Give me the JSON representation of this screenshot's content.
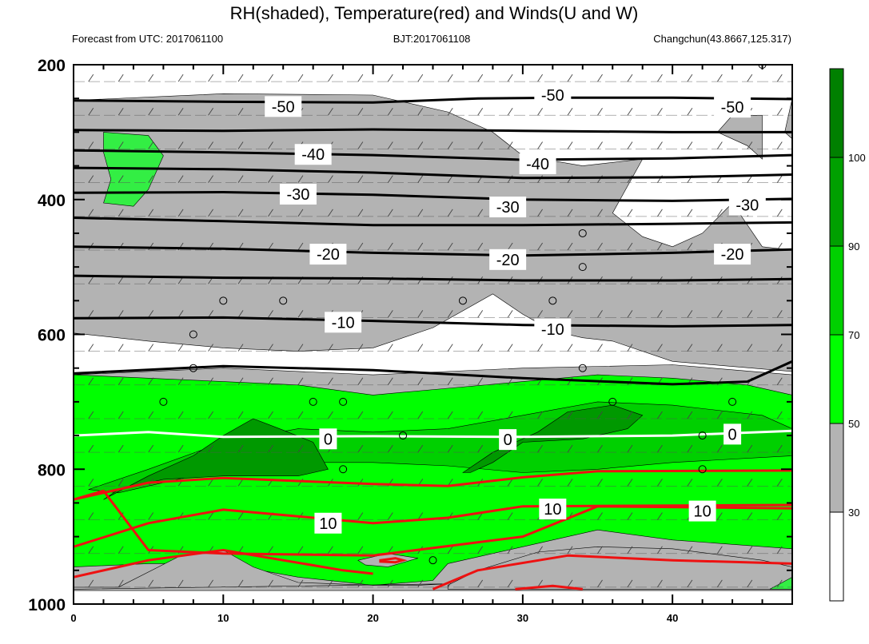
{
  "chart_data": {
    "type": "contour-cross-section",
    "title": "RH(shaded), Temperature(red) and Winds(U and W)",
    "left_subtitle": "Forecast from UTC: 2017061100",
    "center_subtitle": "BJT:2017061108",
    "right_subtitle": "Changchun(43.8667,125.317)",
    "xlim": [
      0,
      48
    ],
    "ylim": [
      1000,
      200
    ],
    "x_ticks": [
      {
        "value": 0,
        "label": "0"
      },
      {
        "value": 10,
        "label": "10"
      },
      {
        "value": 20,
        "label": "20"
      },
      {
        "value": 30,
        "label": "30"
      },
      {
        "value": 40,
        "label": "40"
      }
    ],
    "y_ticks": [
      {
        "value": 200,
        "label": "200"
      },
      {
        "value": 400,
        "label": "400"
      },
      {
        "value": 600,
        "label": "600"
      },
      {
        "value": 800,
        "label": "800"
      },
      {
        "value": 1000,
        "label": "1000"
      }
    ],
    "colorbar": {
      "levels": [
        {
          "value": 30,
          "label": "30"
        },
        {
          "value": 50,
          "label": "50"
        },
        {
          "value": 70,
          "label": "70"
        },
        {
          "value": 90,
          "label": "90"
        },
        {
          "value": 100,
          "label": "100"
        }
      ],
      "colors": [
        "#ffffff",
        "#b3b3b3",
        "#00ff00",
        "#00d000",
        "#00a000",
        "#008000"
      ]
    },
    "colors": {
      "rh_gray": "#b3b3b3",
      "rh_lightgreen": "#33ee44",
      "rh_green": "#00ff00",
      "rh_medgreen": "#00d000",
      "rh_darkgreen": "#009900",
      "temp_negative": "#000000",
      "temp_zero": "#ffffff",
      "temp_positive": "#ee1111"
    },
    "temperature_contours": [
      {
        "level": -50,
        "label": "-50",
        "points": [
          [
            0,
            253
          ],
          [
            10,
            255
          ],
          [
            20,
            256
          ],
          [
            27,
            250
          ],
          [
            33,
            249
          ],
          [
            40,
            249
          ],
          [
            48,
            251
          ]
        ]
      },
      {
        "level": -50,
        "label": "",
        "points": [
          [
            0,
            297
          ],
          [
            10,
            298
          ],
          [
            20,
            296
          ],
          [
            30,
            298
          ],
          [
            40,
            300
          ],
          [
            48,
            300
          ]
        ]
      },
      {
        "level": -40,
        "label": "-40",
        "points": [
          [
            0,
            327
          ],
          [
            10,
            330
          ],
          [
            20,
            334
          ],
          [
            30,
            341
          ],
          [
            40,
            339
          ],
          [
            48,
            334
          ]
        ]
      },
      {
        "level": -40,
        "label": "",
        "points": [
          [
            0,
            353
          ],
          [
            10,
            355
          ],
          [
            20,
            360
          ],
          [
            30,
            368
          ],
          [
            40,
            367
          ],
          [
            48,
            363
          ]
        ]
      },
      {
        "level": -30,
        "label": "-30",
        "points": [
          [
            0,
            390
          ],
          [
            10,
            389
          ],
          [
            20,
            393
          ],
          [
            30,
            400
          ],
          [
            40,
            402
          ],
          [
            48,
            399
          ]
        ]
      },
      {
        "level": -30,
        "label": "",
        "points": [
          [
            0,
            427
          ],
          [
            10,
            432
          ],
          [
            20,
            438
          ],
          [
            30,
            438
          ],
          [
            40,
            436
          ],
          [
            48,
            434
          ]
        ]
      },
      {
        "level": -20,
        "label": "-20",
        "points": [
          [
            0,
            470
          ],
          [
            10,
            473
          ],
          [
            20,
            479
          ],
          [
            30,
            483
          ],
          [
            40,
            479
          ],
          [
            48,
            474
          ]
        ]
      },
      {
        "level": -20,
        "label": "",
        "points": [
          [
            0,
            513
          ],
          [
            10,
            516
          ],
          [
            20,
            517
          ],
          [
            30,
            520
          ],
          [
            40,
            520
          ],
          [
            48,
            518
          ]
        ]
      },
      {
        "level": -10,
        "label": "-10",
        "points": [
          [
            0,
            576
          ],
          [
            10,
            575
          ],
          [
            20,
            580
          ],
          [
            30,
            586
          ],
          [
            40,
            588
          ],
          [
            48,
            586
          ]
        ]
      },
      {
        "level": -10,
        "label": "",
        "points": [
          [
            0,
            658
          ],
          [
            10,
            647
          ],
          [
            20,
            653
          ],
          [
            30,
            665
          ],
          [
            40,
            674
          ],
          [
            45,
            670
          ],
          [
            48,
            640
          ]
        ]
      },
      {
        "level": 0,
        "label": "0",
        "points": [
          [
            0,
            750
          ],
          [
            5,
            745
          ],
          [
            10,
            752
          ],
          [
            20,
            751
          ],
          [
            30,
            752
          ],
          [
            40,
            750
          ],
          [
            48,
            743
          ]
        ]
      },
      {
        "level": 10,
        "label": "10",
        "points": [
          [
            0,
            845
          ],
          [
            5,
            820
          ],
          [
            10,
            813
          ],
          [
            20,
            822
          ],
          [
            25,
            825
          ],
          [
            30,
            812
          ],
          [
            35,
            803
          ],
          [
            48,
            802
          ]
        ]
      },
      {
        "level": 10,
        "label": "",
        "points": [
          [
            0,
            845
          ],
          [
            2,
            832
          ],
          [
            5,
            920
          ],
          [
            10,
            925
          ],
          [
            20,
            928
          ],
          [
            30,
            900
          ],
          [
            35,
            855
          ],
          [
            48,
            858
          ]
        ]
      },
      {
        "level": 20,
        "label": "",
        "points": [
          [
            0,
            915
          ],
          [
            5,
            880
          ],
          [
            10,
            860
          ],
          [
            15,
            870
          ],
          [
            20,
            880
          ],
          [
            25,
            872
          ],
          [
            30,
            855
          ],
          [
            48,
            853
          ]
        ]
      },
      {
        "level": 20,
        "label": "",
        "points": [
          [
            0,
            960
          ],
          [
            5,
            935
          ],
          [
            10,
            920
          ],
          [
            18,
            950
          ],
          [
            20,
            955
          ]
        ]
      },
      {
        "level": 20,
        "label": "",
        "points": [
          [
            24,
            978
          ],
          [
            27,
            950
          ],
          [
            33,
            928
          ],
          [
            40,
            935
          ],
          [
            48,
            940
          ]
        ]
      },
      {
        "level": 20,
        "label": "",
        "points": [
          [
            29.5,
            978
          ],
          [
            32,
            973
          ],
          [
            34,
            978
          ]
        ]
      }
    ],
    "temperature_labels": [
      {
        "text": "-50",
        "x": 14,
        "y": 262
      },
      {
        "text": "-50",
        "x": 32,
        "y": 245
      },
      {
        "text": "-50",
        "x": 44,
        "y": 263
      },
      {
        "text": "-40",
        "x": 16,
        "y": 333
      },
      {
        "text": "-40",
        "x": 31,
        "y": 347
      },
      {
        "text": "-30",
        "x": 15,
        "y": 392
      },
      {
        "text": "-30",
        "x": 29,
        "y": 411
      },
      {
        "text": "-30",
        "x": 45,
        "y": 408
      },
      {
        "text": "-20",
        "x": 17,
        "y": 481
      },
      {
        "text": "-20",
        "x": 29,
        "y": 489
      },
      {
        "text": "-20",
        "x": 44,
        "y": 481
      },
      {
        "text": "-10",
        "x": 18,
        "y": 582
      },
      {
        "text": "-10",
        "x": 32,
        "y": 592
      },
      {
        "text": "0",
        "x": 17,
        "y": 755
      },
      {
        "text": "0",
        "x": 29,
        "y": 756
      },
      {
        "text": "0",
        "x": 44,
        "y": 748
      },
      {
        "text": "10",
        "x": 17,
        "y": 880
      },
      {
        "text": "10",
        "x": 32,
        "y": 859
      },
      {
        "text": "10",
        "x": 42,
        "y": 862
      }
    ],
    "calm_circles": [
      [
        46,
        200
      ],
      [
        34,
        450
      ],
      [
        34,
        500
      ],
      [
        10,
        550
      ],
      [
        14,
        550
      ],
      [
        26,
        550
      ],
      [
        32,
        550
      ],
      [
        8,
        600
      ],
      [
        8,
        650
      ],
      [
        34,
        650
      ],
      [
        6,
        700
      ],
      [
        16,
        700
      ],
      [
        18,
        700
      ],
      [
        36,
        700
      ],
      [
        44,
        700
      ],
      [
        22,
        750
      ],
      [
        42,
        750
      ],
      [
        18,
        800
      ],
      [
        42,
        800
      ],
      [
        24,
        935
      ]
    ]
  }
}
